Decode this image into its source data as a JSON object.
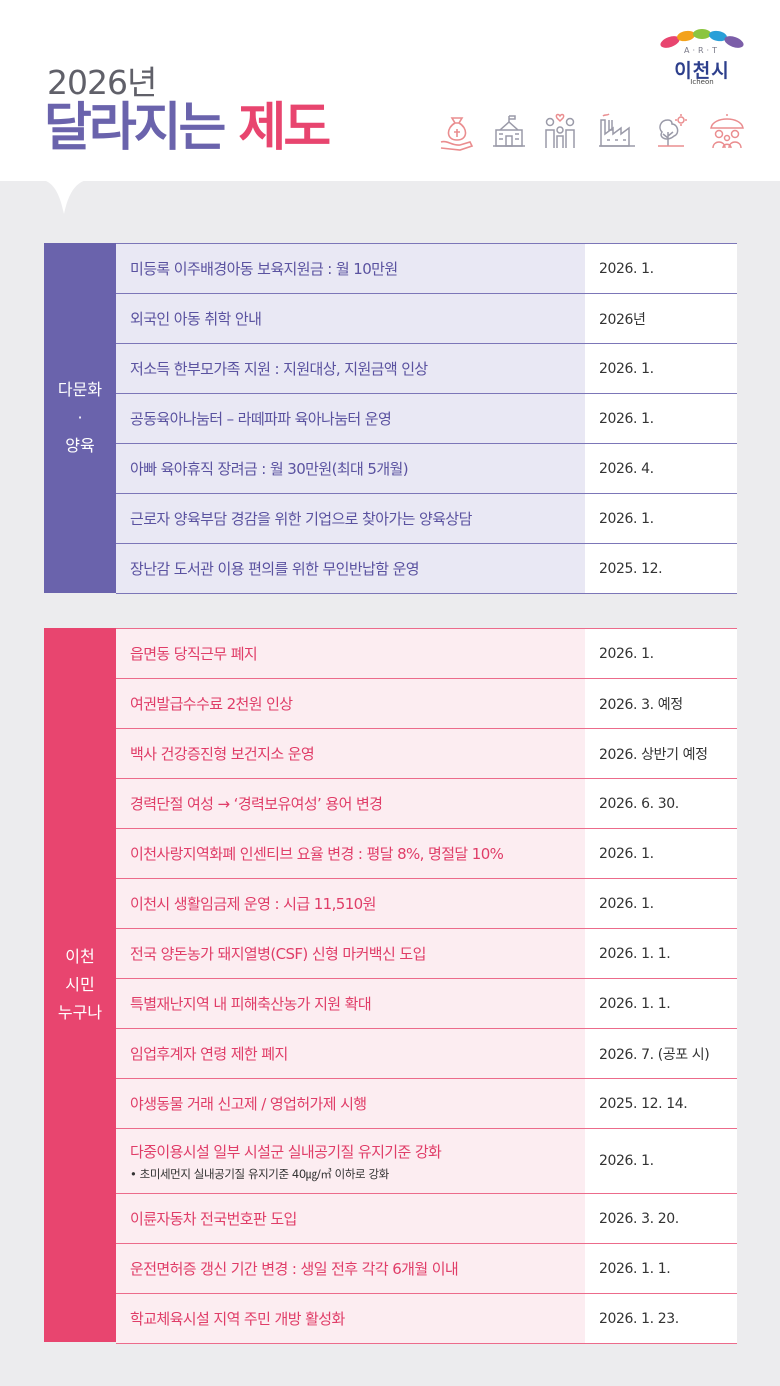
{
  "header": {
    "year_title": "2026년",
    "main_title_part1": "달라지는",
    "main_title_part2": "제도",
    "logo": {
      "art": "A·R·T",
      "name": "이천시",
      "en": "Icheon"
    },
    "icons": [
      "money-bag-hand-icon",
      "school-building-icon",
      "family-icon",
      "factory-icon",
      "tree-icon",
      "umbrella-people-icon"
    ]
  },
  "sections": [
    {
      "label": "다문화\n·\n양육",
      "rows": [
        {
          "item": "미등록 이주배경아동 보육지원금 : 월 10만원",
          "date": "2026. 1."
        },
        {
          "item": "외국인 아동 취학 안내",
          "date": "2026년"
        },
        {
          "item": "저소득 한부모가족 지원 : 지원대상, 지원금액 인상",
          "date": "2026. 1."
        },
        {
          "item": "공동육아나눔터 – 라떼파파 육아나눔터 운영",
          "date": "2026. 1."
        },
        {
          "item": "아빠 육아휴직 장려금 : 월 30만원(최대 5개월)",
          "date": "2026. 4."
        },
        {
          "item": "근로자 양육부담 경감을 위한 기업으로 찾아가는 양육상담",
          "date": "2026. 1."
        },
        {
          "item": "장난감 도서관 이용 편의를 위한 무인반납함 운영",
          "date": "2025. 12."
        }
      ]
    },
    {
      "label": "이천\n시민\n누구나",
      "rows": [
        {
          "item": "읍면동 당직근무 폐지",
          "date": "2026. 1."
        },
        {
          "item": "여권발급수수료 2천원 인상",
          "date": "2026. 3. 예정"
        },
        {
          "item": "백사 건강증진형 보건지소 운영",
          "date": "2026. 상반기 예정"
        },
        {
          "item": "경력단절 여성 → ‘경력보유여성’ 용어 변경",
          "date": "2026. 6. 30."
        },
        {
          "item": "이천사랑지역화폐 인센티브 요율 변경 : 평달 8%, 명절달 10%",
          "date": "2026. 1."
        },
        {
          "item": "이천시 생활임금제 운영 : 시급 11,510원",
          "date": "2026. 1."
        },
        {
          "item": "전국 양돈농가 돼지열병(CSF) 신형 마커백신 도입",
          "date": "2026. 1. 1."
        },
        {
          "item": "특별재난지역 내 피해축산농가 지원 확대",
          "date": "2026. 1. 1."
        },
        {
          "item": "임업후계자 연령 제한 폐지",
          "date": "2026. 7. (공포 시)"
        },
        {
          "item": "야생동물 거래 신고제 / 영업허가제 시행",
          "date": "2025. 12. 14."
        },
        {
          "item": "다중이용시설 일부 시설군 실내공기질 유지기준 강화",
          "sub": "• 초미세먼지 실내공기질 유지기준 40㎍/㎥ 이하로 강화",
          "date": "2026. 1."
        },
        {
          "item": "이륜자동차 전국번호판 도입",
          "date": "2026. 3. 20."
        },
        {
          "item": "운전면허증 갱신 기간 변경 : 생일 전후 각각 6개월 이내",
          "date": "2026. 1. 1."
        },
        {
          "item": "학교체육시설 지역 주민 개방 활성화",
          "date": "2026. 1. 23."
        }
      ]
    }
  ],
  "colors": {
    "purple": "#6a63ac",
    "pink": "#e8456f"
  }
}
